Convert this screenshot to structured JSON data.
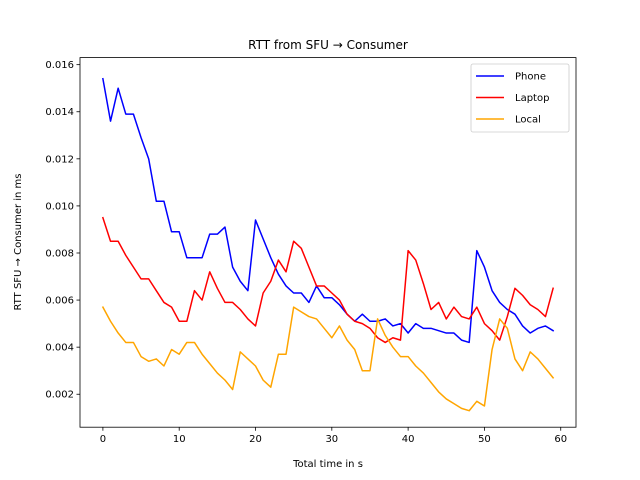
{
  "chart_data": {
    "type": "line",
    "title": "RTT from SFU → Consumer",
    "xlabel": "Total time in s",
    "ylabel": "RTT SFU → Consumer in ms",
    "xlim": [
      -3,
      62
    ],
    "ylim": [
      0.0006,
      0.0163
    ],
    "xticks": [
      0,
      10,
      20,
      30,
      40,
      50,
      60
    ],
    "yticks": [
      0.002,
      0.004,
      0.006,
      0.008,
      0.01,
      0.012,
      0.014,
      0.016
    ],
    "ytick_labels": [
      "0.002",
      "0.004",
      "0.006",
      "0.008",
      "0.010",
      "0.012",
      "0.014",
      "0.016"
    ],
    "xtick_labels": [
      "0",
      "10",
      "20",
      "30",
      "40",
      "50",
      "60"
    ],
    "grid": false,
    "legend_position": "top-right",
    "x": [
      0,
      1,
      2,
      3,
      4,
      5,
      6,
      7,
      8,
      9,
      10,
      11,
      12,
      13,
      14,
      15,
      16,
      17,
      18,
      19,
      20,
      21,
      22,
      23,
      24,
      25,
      26,
      27,
      28,
      29,
      30,
      31,
      32,
      33,
      34,
      35,
      36,
      37,
      38,
      39,
      40,
      41,
      42,
      43,
      44,
      45,
      46,
      47,
      48,
      49,
      50,
      51,
      52,
      53,
      54,
      55,
      56,
      57,
      58,
      59
    ],
    "series": [
      {
        "name": "Phone",
        "color": "#0000ff",
        "values": [
          0.0154,
          0.0136,
          0.015,
          0.0139,
          0.0139,
          0.0129,
          0.012,
          0.0102,
          0.0102,
          0.0089,
          0.0089,
          0.0078,
          0.0078,
          0.0078,
          0.0088,
          0.0088,
          0.0091,
          0.0074,
          0.0068,
          0.0064,
          0.0094,
          0.0086,
          0.0078,
          0.0071,
          0.0066,
          0.0063,
          0.0063,
          0.0059,
          0.0066,
          0.0061,
          0.0061,
          0.0058,
          0.0054,
          0.0051,
          0.0054,
          0.0051,
          0.0051,
          0.0052,
          0.0049,
          0.005,
          0.0046,
          0.005,
          0.0048,
          0.0048,
          0.0047,
          0.0046,
          0.0046,
          0.0043,
          0.0042,
          0.0081,
          0.0074,
          0.0064,
          0.0059,
          0.0056,
          0.0054,
          0.0049,
          0.0046,
          0.0048,
          0.0049,
          0.0047
        ]
      },
      {
        "name": "Laptop",
        "color": "#ff0000",
        "values": [
          0.0095,
          0.0085,
          0.0085,
          0.0079,
          0.0074,
          0.0069,
          0.0069,
          0.0064,
          0.0059,
          0.0057,
          0.0051,
          0.0051,
          0.0064,
          0.006,
          0.0072,
          0.0065,
          0.0059,
          0.0059,
          0.0056,
          0.0052,
          0.0049,
          0.0063,
          0.0068,
          0.0077,
          0.0072,
          0.0085,
          0.0082,
          0.0074,
          0.0066,
          0.0066,
          0.0063,
          0.006,
          0.0054,
          0.0051,
          0.005,
          0.0048,
          0.0044,
          0.0042,
          0.0044,
          0.0043,
          0.0081,
          0.0077,
          0.0067,
          0.0056,
          0.0059,
          0.0052,
          0.0057,
          0.0053,
          0.0052,
          0.0057,
          0.005,
          0.0047,
          0.0043,
          0.0053,
          0.0065,
          0.0062,
          0.0058,
          0.0056,
          0.0053,
          0.0065
        ]
      },
      {
        "name": "Local",
        "color": "#ffa500",
        "values": [
          0.0057,
          0.0051,
          0.0046,
          0.0042,
          0.0042,
          0.0036,
          0.0034,
          0.0035,
          0.0032,
          0.0039,
          0.0037,
          0.0042,
          0.0042,
          0.0037,
          0.0033,
          0.0029,
          0.0026,
          0.0022,
          0.0038,
          0.0035,
          0.0032,
          0.0026,
          0.0023,
          0.0037,
          0.0037,
          0.0057,
          0.0055,
          0.0053,
          0.0052,
          0.0048,
          0.0044,
          0.0049,
          0.0043,
          0.0039,
          0.003,
          0.003,
          0.0052,
          0.0045,
          0.004,
          0.0036,
          0.0036,
          0.0032,
          0.0029,
          0.0025,
          0.0021,
          0.0018,
          0.0016,
          0.0014,
          0.0013,
          0.0017,
          0.0015,
          0.0039,
          0.0052,
          0.0048,
          0.0035,
          0.003,
          0.0038,
          0.0035,
          0.0031,
          0.0027
        ]
      }
    ]
  }
}
